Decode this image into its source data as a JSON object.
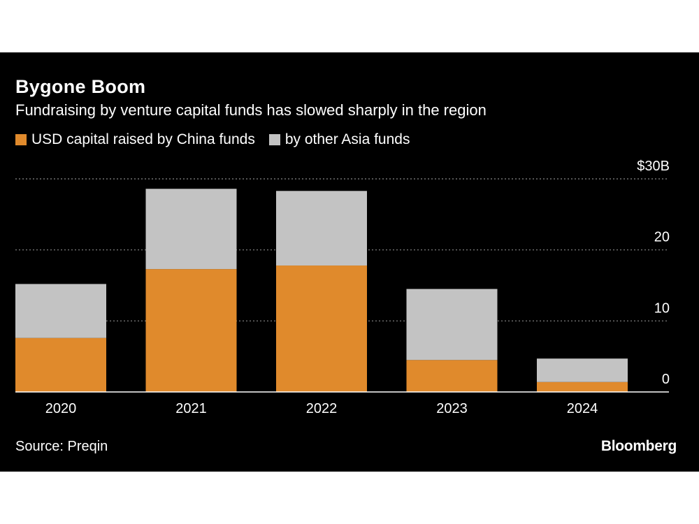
{
  "header": {
    "title": "Bygone Boom",
    "subtitle": "Fundraising by venture capital funds has slowed sharply in the region"
  },
  "footer": {
    "source": "Source: Preqin",
    "brand": "Bloomberg"
  },
  "colors": {
    "china": "#e08a2c",
    "other_asia": "#c3c3c3",
    "background": "#000000",
    "text": "#ffffff",
    "gridline": "#8a8a8a"
  },
  "chart_data": {
    "type": "bar",
    "stacked": true,
    "categories": [
      "2020",
      "2021",
      "2022",
      "2023",
      "2024"
    ],
    "series": [
      {
        "name": "USD capital raised by China funds",
        "values": [
          7.6,
          17.3,
          17.8,
          4.5,
          1.4
        ],
        "color": "#e08a2c"
      },
      {
        "name": "by other Asia funds",
        "values": [
          7.6,
          11.3,
          10.5,
          10.0,
          3.3
        ],
        "color": "#c3c3c3"
      }
    ],
    "ylim": [
      0,
      30
    ],
    "yticks": [
      {
        "value": 0,
        "label": "0"
      },
      {
        "value": 10,
        "label": "10"
      },
      {
        "value": 20,
        "label": "20"
      },
      {
        "value": 30,
        "label": "$30B"
      }
    ],
    "y_axis_side": "right",
    "grid": "dotted horizontal",
    "legend_position": "top-left"
  }
}
